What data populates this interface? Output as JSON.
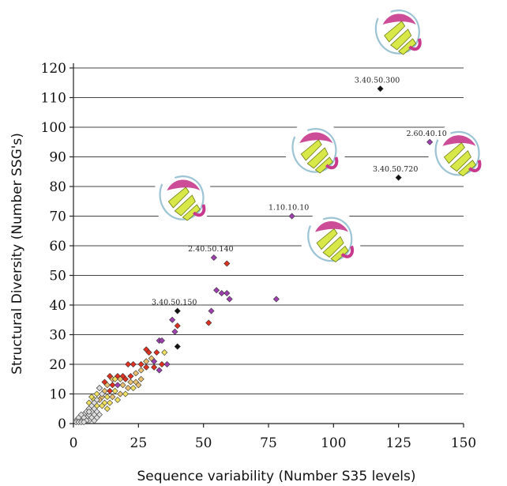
{
  "chart_data": {
    "type": "scatter",
    "xlabel": "Sequence variability (Number S35 levels)",
    "ylabel": "Structural Diversity (Number SSG's)",
    "xlim": [
      0,
      150
    ],
    "ylim": [
      0,
      120
    ],
    "x_ticks": [
      0,
      25,
      50,
      75,
      100,
      125,
      150
    ],
    "y_ticks": [
      0,
      10,
      20,
      30,
      40,
      50,
      60,
      70,
      80,
      90,
      100,
      110,
      120
    ],
    "grid": "horizontal",
    "annotations": [
      {
        "label": "3.40.50.300",
        "x": 118,
        "y": 113
      },
      {
        "label": "2.60.40.10",
        "x": 137,
        "y": 95
      },
      {
        "label": "3.40.50.720",
        "x": 125,
        "y": 83
      },
      {
        "label": "1.10.10.10",
        "x": 84,
        "y": 70
      },
      {
        "label": "2.40.50.140",
        "x": 54,
        "y": 56
      },
      {
        "label": "3.40.50.150",
        "x": 40,
        "y": 38
      }
    ],
    "points": [
      {
        "x": 118,
        "y": 113,
        "color": "#111111"
      },
      {
        "x": 137,
        "y": 95,
        "color": "#a040b0"
      },
      {
        "x": 125,
        "y": 83,
        "color": "#111111"
      },
      {
        "x": 84,
        "y": 70,
        "color": "#a040b0"
      },
      {
        "x": 54,
        "y": 56,
        "color": "#a040b0"
      },
      {
        "x": 59,
        "y": 54,
        "color": "#e03020"
      },
      {
        "x": 40,
        "y": 38,
        "color": "#111111"
      },
      {
        "x": 78,
        "y": 42,
        "color": "#a040b0"
      },
      {
        "x": 55,
        "y": 45,
        "color": "#a040b0"
      },
      {
        "x": 57,
        "y": 44,
        "color": "#a040b0"
      },
      {
        "x": 59,
        "y": 44,
        "color": "#a040b0"
      },
      {
        "x": 60,
        "y": 42,
        "color": "#a040b0"
      },
      {
        "x": 53,
        "y": 38,
        "color": "#a040b0"
      },
      {
        "x": 52,
        "y": 34,
        "color": "#e03020"
      },
      {
        "x": 38,
        "y": 35,
        "color": "#a040b0"
      },
      {
        "x": 40,
        "y": 33,
        "color": "#e03020"
      },
      {
        "x": 39,
        "y": 31,
        "color": "#a040b0"
      },
      {
        "x": 33,
        "y": 28,
        "color": "#a040b0"
      },
      {
        "x": 34,
        "y": 28,
        "color": "#a040b0"
      },
      {
        "x": 40,
        "y": 26,
        "color": "#111111"
      },
      {
        "x": 28,
        "y": 25,
        "color": "#e03020"
      },
      {
        "x": 29,
        "y": 24,
        "color": "#e03020"
      },
      {
        "x": 32,
        "y": 24,
        "color": "#e03020"
      },
      {
        "x": 35,
        "y": 24,
        "color": "#f0e060"
      },
      {
        "x": 30,
        "y": 22,
        "color": "#e8c070"
      },
      {
        "x": 31,
        "y": 21,
        "color": "#a040b0"
      },
      {
        "x": 34,
        "y": 20,
        "color": "#e03020"
      },
      {
        "x": 36,
        "y": 20,
        "color": "#a040b0"
      },
      {
        "x": 28,
        "y": 21,
        "color": "#e8c070"
      },
      {
        "x": 21,
        "y": 20,
        "color": "#e03020"
      },
      {
        "x": 23,
        "y": 20,
        "color": "#e03020"
      },
      {
        "x": 26,
        "y": 20,
        "color": "#e03020"
      },
      {
        "x": 31,
        "y": 19,
        "color": "#e03020"
      },
      {
        "x": 33,
        "y": 18,
        "color": "#a040b0"
      },
      {
        "x": 26,
        "y": 18,
        "color": "#e8c070"
      },
      {
        "x": 28,
        "y": 19,
        "color": "#e03020"
      },
      {
        "x": 17,
        "y": 16,
        "color": "#e03020"
      },
      {
        "x": 19,
        "y": 16,
        "color": "#e03020"
      },
      {
        "x": 22,
        "y": 16,
        "color": "#e03020"
      },
      {
        "x": 24,
        "y": 17,
        "color": "#e8c070"
      },
      {
        "x": 14,
        "y": 16,
        "color": "#e03020"
      },
      {
        "x": 15,
        "y": 15,
        "color": "#e8c070"
      },
      {
        "x": 16,
        "y": 15,
        "color": "#f0e060"
      },
      {
        "x": 18,
        "y": 15,
        "color": "#e8c070"
      },
      {
        "x": 20,
        "y": 15,
        "color": "#e03020"
      },
      {
        "x": 22,
        "y": 14,
        "color": "#e8c070"
      },
      {
        "x": 24,
        "y": 14,
        "color": "#e8c070"
      },
      {
        "x": 26,
        "y": 15,
        "color": "#e8c070"
      },
      {
        "x": 12,
        "y": 14,
        "color": "#e03020"
      },
      {
        "x": 13,
        "y": 13,
        "color": "#e8c070"
      },
      {
        "x": 15,
        "y": 13,
        "color": "#e03020"
      },
      {
        "x": 17,
        "y": 13,
        "color": "#a040b0"
      },
      {
        "x": 19,
        "y": 13,
        "color": "#e8c070"
      },
      {
        "x": 21,
        "y": 12,
        "color": "#e8c070"
      },
      {
        "x": 23,
        "y": 12,
        "color": "#f0e060"
      },
      {
        "x": 25,
        "y": 13,
        "color": "#e8c070"
      },
      {
        "x": 10,
        "y": 12,
        "color": "#f0e060"
      },
      {
        "x": 12,
        "y": 11,
        "color": "#e8c070"
      },
      {
        "x": 14,
        "y": 11,
        "color": "#e03020"
      },
      {
        "x": 16,
        "y": 11,
        "color": "#f0e060"
      },
      {
        "x": 18,
        "y": 10,
        "color": "#e8c070"
      },
      {
        "x": 20,
        "y": 10,
        "color": "#f0e060"
      },
      {
        "x": 9,
        "y": 10,
        "color": "#f0e060"
      },
      {
        "x": 11,
        "y": 9,
        "color": "#e8c070"
      },
      {
        "x": 13,
        "y": 9,
        "color": "#f0e060"
      },
      {
        "x": 15,
        "y": 9,
        "color": "#e8c070"
      },
      {
        "x": 17,
        "y": 8,
        "color": "#f0e060"
      },
      {
        "x": 7,
        "y": 9,
        "color": "#f0e060"
      },
      {
        "x": 8,
        "y": 8,
        "color": "#f0e060"
      },
      {
        "x": 10,
        "y": 8,
        "color": "#e8c070"
      },
      {
        "x": 12,
        "y": 7,
        "color": "#f0e060"
      },
      {
        "x": 14,
        "y": 7,
        "color": "#f0e060"
      },
      {
        "x": 6,
        "y": 7,
        "color": "#f0e060"
      },
      {
        "x": 9,
        "y": 6,
        "color": "#f0e060"
      },
      {
        "x": 11,
        "y": 6,
        "color": "#f0e060"
      },
      {
        "x": 13,
        "y": 5,
        "color": "#f0e060"
      },
      {
        "x": 10,
        "y": 12,
        "color": "#dddddd"
      },
      {
        "x": 11,
        "y": 10,
        "color": "#dddddd"
      },
      {
        "x": 9,
        "y": 8,
        "color": "#dddddd"
      },
      {
        "x": 8,
        "y": 7,
        "color": "#dddddd"
      },
      {
        "x": 7,
        "y": 6,
        "color": "#dddddd"
      },
      {
        "x": 6,
        "y": 5,
        "color": "#dddddd"
      },
      {
        "x": 8,
        "y": 5,
        "color": "#dddddd"
      },
      {
        "x": 5,
        "y": 4,
        "color": "#dddddd"
      },
      {
        "x": 7,
        "y": 4,
        "color": "#dddddd"
      },
      {
        "x": 9,
        "y": 4,
        "color": "#dddddd"
      },
      {
        "x": 4,
        "y": 3,
        "color": "#dddddd"
      },
      {
        "x": 6,
        "y": 3,
        "color": "#dddddd"
      },
      {
        "x": 8,
        "y": 3,
        "color": "#dddddd"
      },
      {
        "x": 10,
        "y": 3,
        "color": "#dddddd"
      },
      {
        "x": 3,
        "y": 2,
        "color": "#dddddd"
      },
      {
        "x": 5,
        "y": 2,
        "color": "#dddddd"
      },
      {
        "x": 7,
        "y": 2,
        "color": "#dddddd"
      },
      {
        "x": 9,
        "y": 2,
        "color": "#dddddd"
      },
      {
        "x": 2,
        "y": 1,
        "color": "#dddddd"
      },
      {
        "x": 4,
        "y": 1,
        "color": "#dddddd"
      },
      {
        "x": 6,
        "y": 1,
        "color": "#dddddd"
      },
      {
        "x": 8,
        "y": 1,
        "color": "#dddddd"
      },
      {
        "x": 1,
        "y": 1,
        "color": "#dddddd"
      },
      {
        "x": 3,
        "y": 1,
        "color": "#dddddd"
      },
      {
        "x": 5,
        "y": 1,
        "color": "#dddddd"
      },
      {
        "x": 2,
        "y": 2,
        "color": "#dddddd"
      },
      {
        "x": 4,
        "y": 2,
        "color": "#dddddd"
      },
      {
        "x": 6,
        "y": 4,
        "color": "#dddddd"
      },
      {
        "x": 3,
        "y": 3,
        "color": "#dddddd"
      },
      {
        "x": 1,
        "y": 0.5,
        "color": "#dddddd"
      },
      {
        "x": 2,
        "y": 0.5,
        "color": "#dddddd"
      },
      {
        "x": 3,
        "y": 0.5,
        "color": "#dddddd"
      },
      {
        "x": 4,
        "y": 0.5,
        "color": "#dddddd"
      }
    ],
    "structure_images": [
      {
        "name": "structure-3-40-50-300-image",
        "helix": "#c8388c",
        "sheet": "#d8e848",
        "coil": "#9cc4d4",
        "x": 125,
        "y": 132
      },
      {
        "name": "structure-2-60-40-10-image",
        "helix": "#c8388c",
        "sheet": "#d8e848",
        "coil": "#9cc4d4",
        "x": 148,
        "y": 91
      },
      {
        "name": "structure-mid-beta-image",
        "helix": "#c8388c",
        "sheet": "#d8e848",
        "coil": "#9cc4d4",
        "x": 93,
        "y": 92
      },
      {
        "name": "structure-left-beta-image",
        "helix": "#c8388c",
        "sheet": "#d8e848",
        "coil": "#9cc4d4",
        "x": 42,
        "y": 76
      },
      {
        "name": "structure-1-10-10-10-image",
        "helix": "#c8388c",
        "sheet": "#d8e848",
        "coil": "#9cc4d4",
        "x": 99,
        "y": 62
      }
    ]
  }
}
